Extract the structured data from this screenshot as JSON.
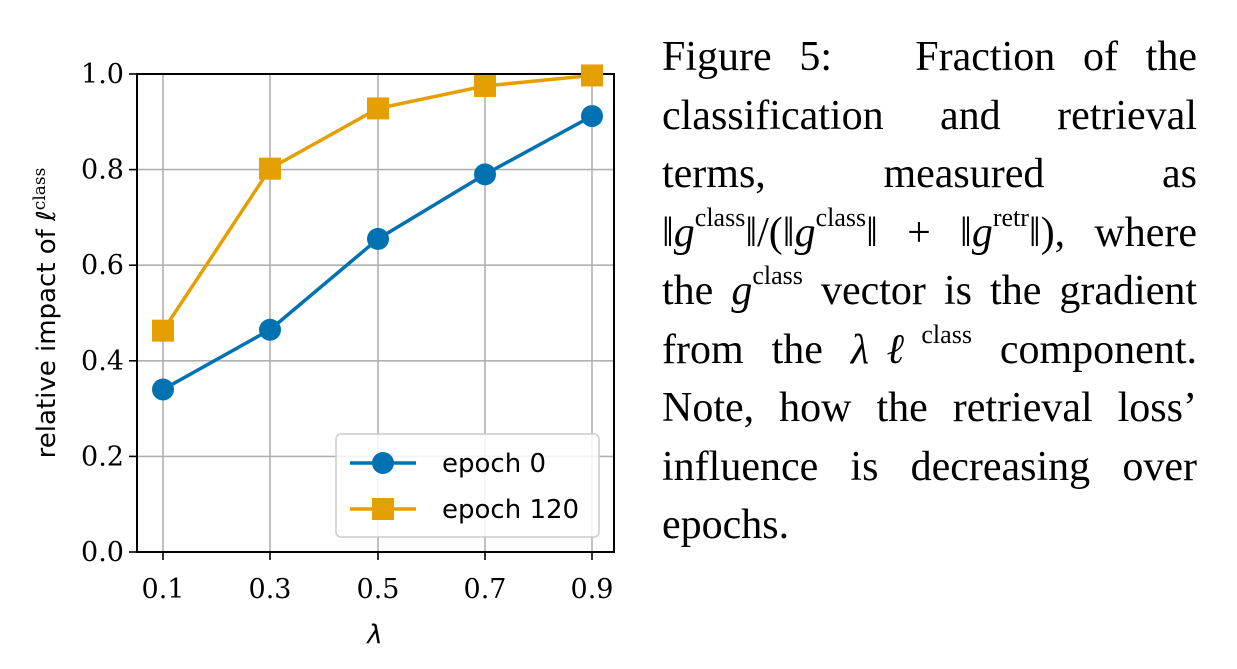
{
  "chart_data": {
    "type": "line",
    "xlabel": "λ",
    "ylabel": "relative impact of ℓ",
    "ylabel_sup": "class",
    "x": [
      0.1,
      0.3,
      0.5,
      0.7,
      0.9
    ],
    "xticks": [
      "0.1",
      "0.3",
      "0.5",
      "0.7",
      "0.9"
    ],
    "yticks": [
      "0.0",
      "0.2",
      "0.4",
      "0.6",
      "0.8",
      "1.0"
    ],
    "ylim": [
      0.0,
      1.0
    ],
    "grid": true,
    "legend_position": "lower-right",
    "series": [
      {
        "name": "epoch 0",
        "marker": "circle",
        "color": "#0072B2",
        "values": [
          0.34,
          0.465,
          0.655,
          0.79,
          0.912
        ]
      },
      {
        "name": "epoch 120",
        "marker": "square",
        "color": "#E69F00",
        "values": [
          0.463,
          0.802,
          0.928,
          0.975,
          0.997
        ]
      }
    ]
  },
  "caption": {
    "figure_label": "Figure 5:",
    "parts": [
      "Fraction of the classification and retrieval terms, measured as ‖",
      "g",
      "class",
      "‖/(‖",
      "g",
      "class",
      "‖ + ‖",
      "g",
      "retr",
      "‖), where the ",
      "g",
      "class",
      " vector is the gradient from the ",
      "λℓ",
      "class",
      " component. Note, how the retrieval loss’ influence is decreasing over epochs."
    ]
  }
}
